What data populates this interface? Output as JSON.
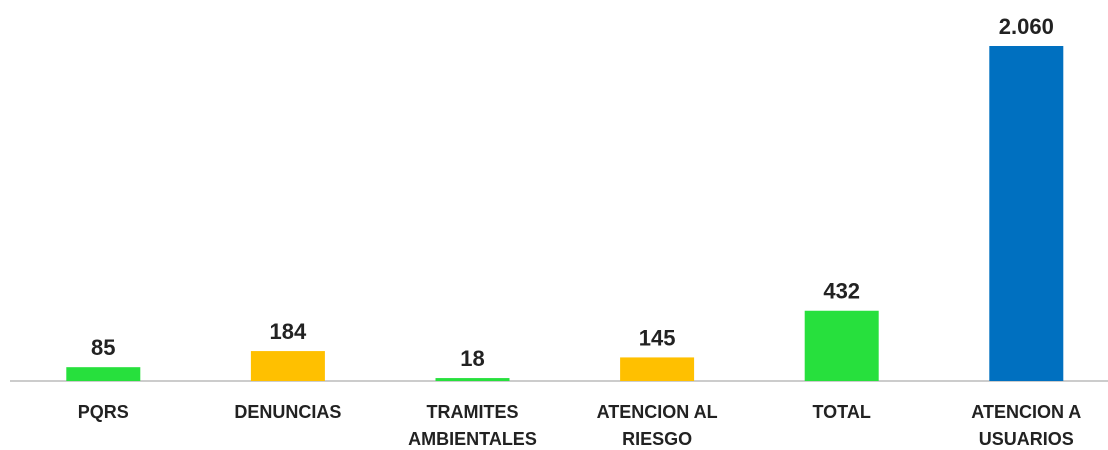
{
  "chart_data": {
    "type": "bar",
    "categories": [
      "PQRS",
      "DENUNCIAS",
      "TRAMITES AMBIENTALES",
      "ATENCION AL RIESGO",
      "TOTAL",
      "ATENCION A USUARIOS"
    ],
    "values": [
      85,
      184,
      18,
      145,
      432,
      2060
    ],
    "value_labels": [
      "85",
      "184",
      "18",
      "145",
      "432",
      "2.060"
    ],
    "colors": [
      "#27e03d",
      "#ffc000",
      "#27e03d",
      "#ffc000",
      "#27e03d",
      "#0070c0"
    ]
  }
}
